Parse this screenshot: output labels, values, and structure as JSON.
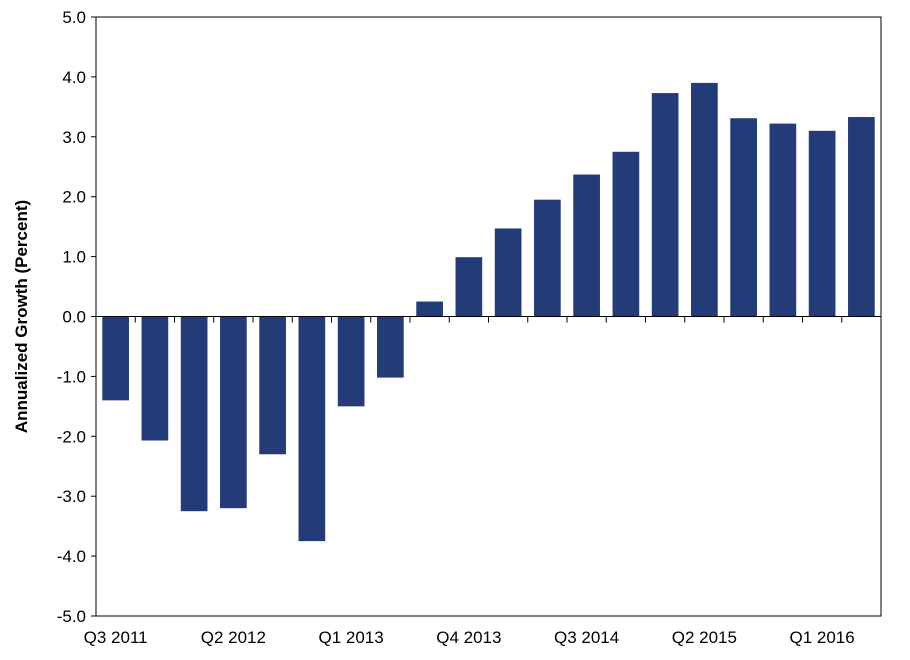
{
  "chart_data": {
    "type": "bar",
    "ylabel": "Annualized Growth (Percent)",
    "ylim": [
      -5.0,
      5.0
    ],
    "yticks": [
      "5.0",
      "4.0",
      "3.0",
      "2.0",
      "1.0",
      "0.0",
      "-1.0",
      "-2.0",
      "-3.0",
      "-4.0",
      "-5.0"
    ],
    "categories": [
      "Q3 2011",
      "Q4 2011",
      "Q1 2012",
      "Q2 2012",
      "Q3 2012",
      "Q4 2012",
      "Q1 2013",
      "Q2 2013",
      "Q3 2013",
      "Q4 2013",
      "Q1 2014",
      "Q2 2014",
      "Q3 2014",
      "Q4 2014",
      "Q1 2015",
      "Q2 2015",
      "Q3 2015",
      "Q4 2015",
      "Q1 2016",
      "Q2 2016"
    ],
    "visible_xtick_labels": [
      "Q3 2011",
      "Q2 2012",
      "Q1 2013",
      "Q4 2013",
      "Q3 2014",
      "Q2 2015",
      "Q1 2016"
    ],
    "values": [
      -1.4,
      -2.07,
      -3.25,
      -3.2,
      -2.3,
      -3.75,
      -1.5,
      -1.02,
      0.25,
      0.99,
      1.47,
      1.95,
      2.37,
      2.75,
      3.73,
      3.9,
      3.31,
      3.22,
      3.1,
      3.33
    ],
    "bar_color": "#233C78",
    "grid": false
  }
}
